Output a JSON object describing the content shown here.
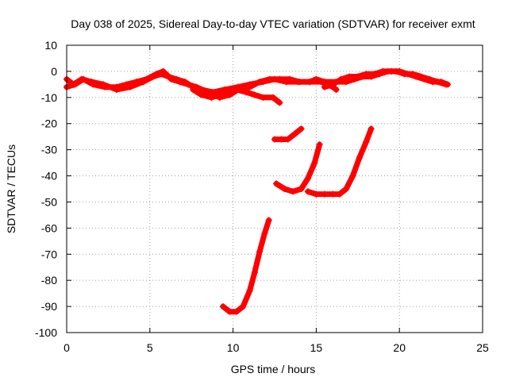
{
  "chart_data": {
    "type": "scatter",
    "title": "Day 038 of 2025, Sidereal Day-to-day VTEC variation (SDTVAR) for receiver exmt",
    "xlabel": "GPS time / hours",
    "ylabel": "SDTVAR / TECUs",
    "xlim": [
      0,
      25
    ],
    "ylim": [
      -100,
      10
    ],
    "xticks": [
      0,
      5,
      10,
      15,
      20,
      25
    ],
    "yticks": [
      10,
      0,
      -10,
      -20,
      -30,
      -40,
      -50,
      -60,
      -70,
      -80,
      -90,
      -100
    ],
    "grid": true,
    "legend": "none",
    "marker": "+",
    "color": "#ff0000",
    "series": [
      {
        "name": "trace-main-1",
        "points": [
          [
            0,
            -3
          ],
          [
            0.4,
            -5
          ],
          [
            0.9,
            -3
          ],
          [
            1.5,
            -4
          ],
          [
            2.2,
            -5
          ],
          [
            3,
            -7
          ],
          [
            3.8,
            -6
          ],
          [
            4.6,
            -4
          ],
          [
            5.2,
            -2
          ],
          [
            5.7,
            -1
          ],
          [
            6.1,
            -2
          ],
          [
            6.6,
            -3
          ],
          [
            7.1,
            -4
          ],
          [
            7.6,
            -6
          ],
          [
            8.1,
            -7
          ],
          [
            8.8,
            -8
          ],
          [
            9.5,
            -7
          ],
          [
            10.3,
            -6
          ],
          [
            11,
            -5
          ],
          [
            11.8,
            -4
          ],
          [
            12.5,
            -3
          ],
          [
            13.2,
            -4
          ],
          [
            13.9,
            -4
          ],
          [
            14.6,
            -4
          ],
          [
            15.3,
            -4
          ],
          [
            16,
            -6
          ],
          [
            16.2,
            -7
          ]
        ]
      },
      {
        "name": "trace-main-2",
        "points": [
          [
            0,
            -6
          ],
          [
            0.5,
            -5
          ],
          [
            1,
            -3
          ],
          [
            1.6,
            -5
          ],
          [
            2.3,
            -6
          ],
          [
            3,
            -6
          ],
          [
            3.6,
            -5
          ],
          [
            4.2,
            -4
          ],
          [
            4.8,
            -3
          ],
          [
            5.4,
            -1
          ],
          [
            5.8,
            0
          ],
          [
            6.3,
            -3
          ],
          [
            6.8,
            -4
          ],
          [
            7.3,
            -5
          ],
          [
            7.8,
            -6
          ],
          [
            8.5,
            -8
          ],
          [
            9.2,
            -10
          ],
          [
            9.8,
            -9
          ],
          [
            10.3,
            -7
          ],
          [
            11,
            -6
          ],
          [
            11.6,
            -4
          ],
          [
            12.2,
            -3
          ],
          [
            12.8,
            -3
          ],
          [
            13.4,
            -3
          ],
          [
            14,
            -4
          ],
          [
            14.6,
            -4
          ],
          [
            15,
            -3
          ],
          [
            15.5,
            -4
          ],
          [
            16.2,
            -4
          ],
          [
            16.8,
            -4
          ],
          [
            17.3,
            -3
          ],
          [
            17.8,
            -2
          ],
          [
            18.3,
            -2
          ],
          [
            18.8,
            -1
          ],
          [
            19.3,
            0
          ],
          [
            19.8,
            0
          ],
          [
            20.3,
            -1
          ],
          [
            20.8,
            -1
          ],
          [
            21.3,
            -2
          ],
          [
            21.8,
            -3
          ],
          [
            22.3,
            -4
          ],
          [
            22.8,
            -5
          ]
        ]
      },
      {
        "name": "trace-main-3",
        "points": [
          [
            7.6,
            -7
          ],
          [
            8.1,
            -9
          ],
          [
            8.7,
            -10
          ],
          [
            9.2,
            -9
          ],
          [
            9.7,
            -8
          ],
          [
            10.2,
            -7
          ],
          [
            10.8,
            -8
          ],
          [
            11.3,
            -9
          ],
          [
            11.8,
            -10
          ],
          [
            12.4,
            -10
          ],
          [
            12.8,
            -12
          ]
        ]
      },
      {
        "name": "trace-main-4",
        "points": [
          [
            15.5,
            -6
          ],
          [
            16,
            -5
          ],
          [
            16.5,
            -3
          ],
          [
            17,
            -2
          ],
          [
            17.5,
            -2
          ],
          [
            18,
            -1
          ],
          [
            18.5,
            -1
          ],
          [
            19,
            0
          ],
          [
            19.5,
            0
          ],
          [
            20,
            0
          ],
          [
            20.5,
            -1
          ],
          [
            21,
            -2
          ],
          [
            21.5,
            -3
          ],
          [
            22,
            -4
          ],
          [
            22.5,
            -4
          ],
          [
            22.9,
            -5
          ]
        ]
      },
      {
        "name": "trace-dip-12h",
        "points": [
          [
            9.4,
            -90
          ],
          [
            9.8,
            -92
          ],
          [
            10.2,
            -92
          ],
          [
            10.6,
            -90
          ],
          [
            11,
            -84
          ],
          [
            11.3,
            -77
          ],
          [
            11.6,
            -69
          ],
          [
            11.9,
            -62
          ],
          [
            12.15,
            -57
          ]
        ]
      },
      {
        "name": "trace-13h",
        "points": [
          [
            12.5,
            -26
          ],
          [
            12.9,
            -26
          ],
          [
            13.3,
            -26
          ],
          [
            13.7,
            -24
          ],
          [
            14.1,
            -22
          ]
        ]
      },
      {
        "name": "trace-14h",
        "points": [
          [
            12.6,
            -43
          ],
          [
            13.1,
            -45
          ],
          [
            13.6,
            -46
          ],
          [
            14.1,
            -45
          ],
          [
            14.5,
            -41
          ],
          [
            14.9,
            -35
          ],
          [
            15.2,
            -28
          ]
        ]
      },
      {
        "name": "trace-17h",
        "points": [
          [
            14.5,
            -46
          ],
          [
            15,
            -47
          ],
          [
            15.5,
            -47
          ],
          [
            16,
            -47
          ],
          [
            16.4,
            -47
          ],
          [
            16.8,
            -45
          ],
          [
            17.2,
            -40
          ],
          [
            17.6,
            -33
          ],
          [
            18,
            -27
          ],
          [
            18.3,
            -22
          ]
        ]
      }
    ]
  }
}
